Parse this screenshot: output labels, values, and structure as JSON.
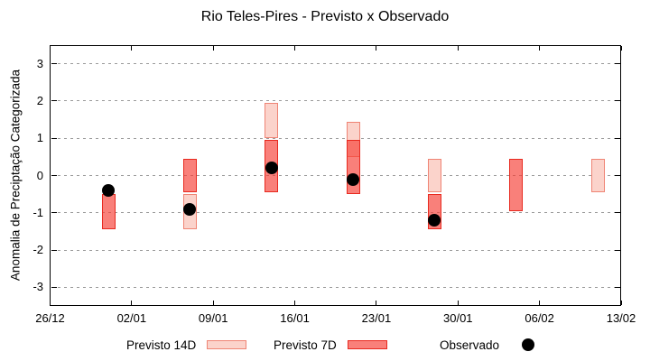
{
  "window": {
    "title": "Rio Teles-Pires - Previsto x Observado"
  },
  "legend": {
    "items": [
      {
        "label": "Previsto 14D",
        "marker": "bar-swatch-14d"
      },
      {
        "label": "Previsto 7D",
        "marker": "bar-swatch-7d"
      },
      {
        "label": "Observado",
        "marker": "black-dot"
      }
    ]
  },
  "colors": {
    "previsto_14d_fill": "#fbd3cb",
    "previsto_14d_border": "#ef8474",
    "previsto_7d_fill": "#f63c32",
    "previsto_7d_fill_opacity": 0.65,
    "previsto_7d_border": "#e8291f",
    "observado": "#000000",
    "grid": "#9a9a9a",
    "frame": "#000000"
  },
  "chart_data": {
    "type": "bar",
    "subtype": "range-bars-with-scatter-overlay",
    "title": "Rio Teles-Pires - Previsto x Observado",
    "xlabel": "",
    "ylabel": "Anomalia de Preciptação Categorizada",
    "ylim": [
      -3.5,
      3.5
    ],
    "yticks": [
      3,
      2,
      1,
      0,
      -1,
      -2,
      -3
    ],
    "xtick_labels": [
      "26/12",
      "02/01",
      "09/01",
      "16/01",
      "23/01",
      "30/01",
      "06/02",
      "13/02"
    ],
    "xtick_days": [
      0,
      7,
      14,
      21,
      28,
      35,
      42,
      49
    ],
    "xlim_days": [
      0,
      49
    ],
    "grid": "horizontal-dashed",
    "legend_position": "bottom-outside",
    "series": [
      {
        "name": "Previsto 14D",
        "type": "range-bar",
        "points": [
          {
            "date": "07/01",
            "day": 12,
            "hi": -0.5,
            "lo": -1.45
          },
          {
            "date": "14/01",
            "day": 19,
            "hi": 1.95,
            "lo": 1.0
          },
          {
            "date": "21/01",
            "day": 26,
            "hi": 1.45,
            "lo": 0.5
          },
          {
            "date": "28/01",
            "day": 33,
            "hi": 0.45,
            "lo": -0.45
          },
          {
            "date": "11/02",
            "day": 47,
            "hi": 0.45,
            "lo": -0.45
          }
        ]
      },
      {
        "name": "Previsto 7D",
        "type": "range-bar",
        "points": [
          {
            "date": "31/12",
            "day": 5,
            "hi": -0.5,
            "lo": -1.45
          },
          {
            "date": "07/01",
            "day": 12,
            "hi": 0.45,
            "lo": -0.45
          },
          {
            "date": "14/01",
            "day": 19,
            "hi": 0.95,
            "lo": -0.45
          },
          {
            "date": "21/01",
            "day": 26,
            "hi": 0.95,
            "lo": -0.5
          },
          {
            "date": "28/01",
            "day": 33,
            "hi": -0.5,
            "lo": -1.45
          },
          {
            "date": "04/02",
            "day": 40,
            "hi": 0.45,
            "lo": -0.95
          }
        ]
      },
      {
        "name": "Observado",
        "type": "scatter",
        "points": [
          {
            "date": "31/12",
            "day": 5,
            "y": -0.4
          },
          {
            "date": "07/01",
            "day": 12,
            "y": -0.9
          },
          {
            "date": "14/01",
            "day": 19,
            "y": 0.2
          },
          {
            "date": "21/01",
            "day": 26,
            "y": -0.1
          },
          {
            "date": "28/01",
            "day": 33,
            "y": -1.2
          }
        ]
      }
    ]
  }
}
